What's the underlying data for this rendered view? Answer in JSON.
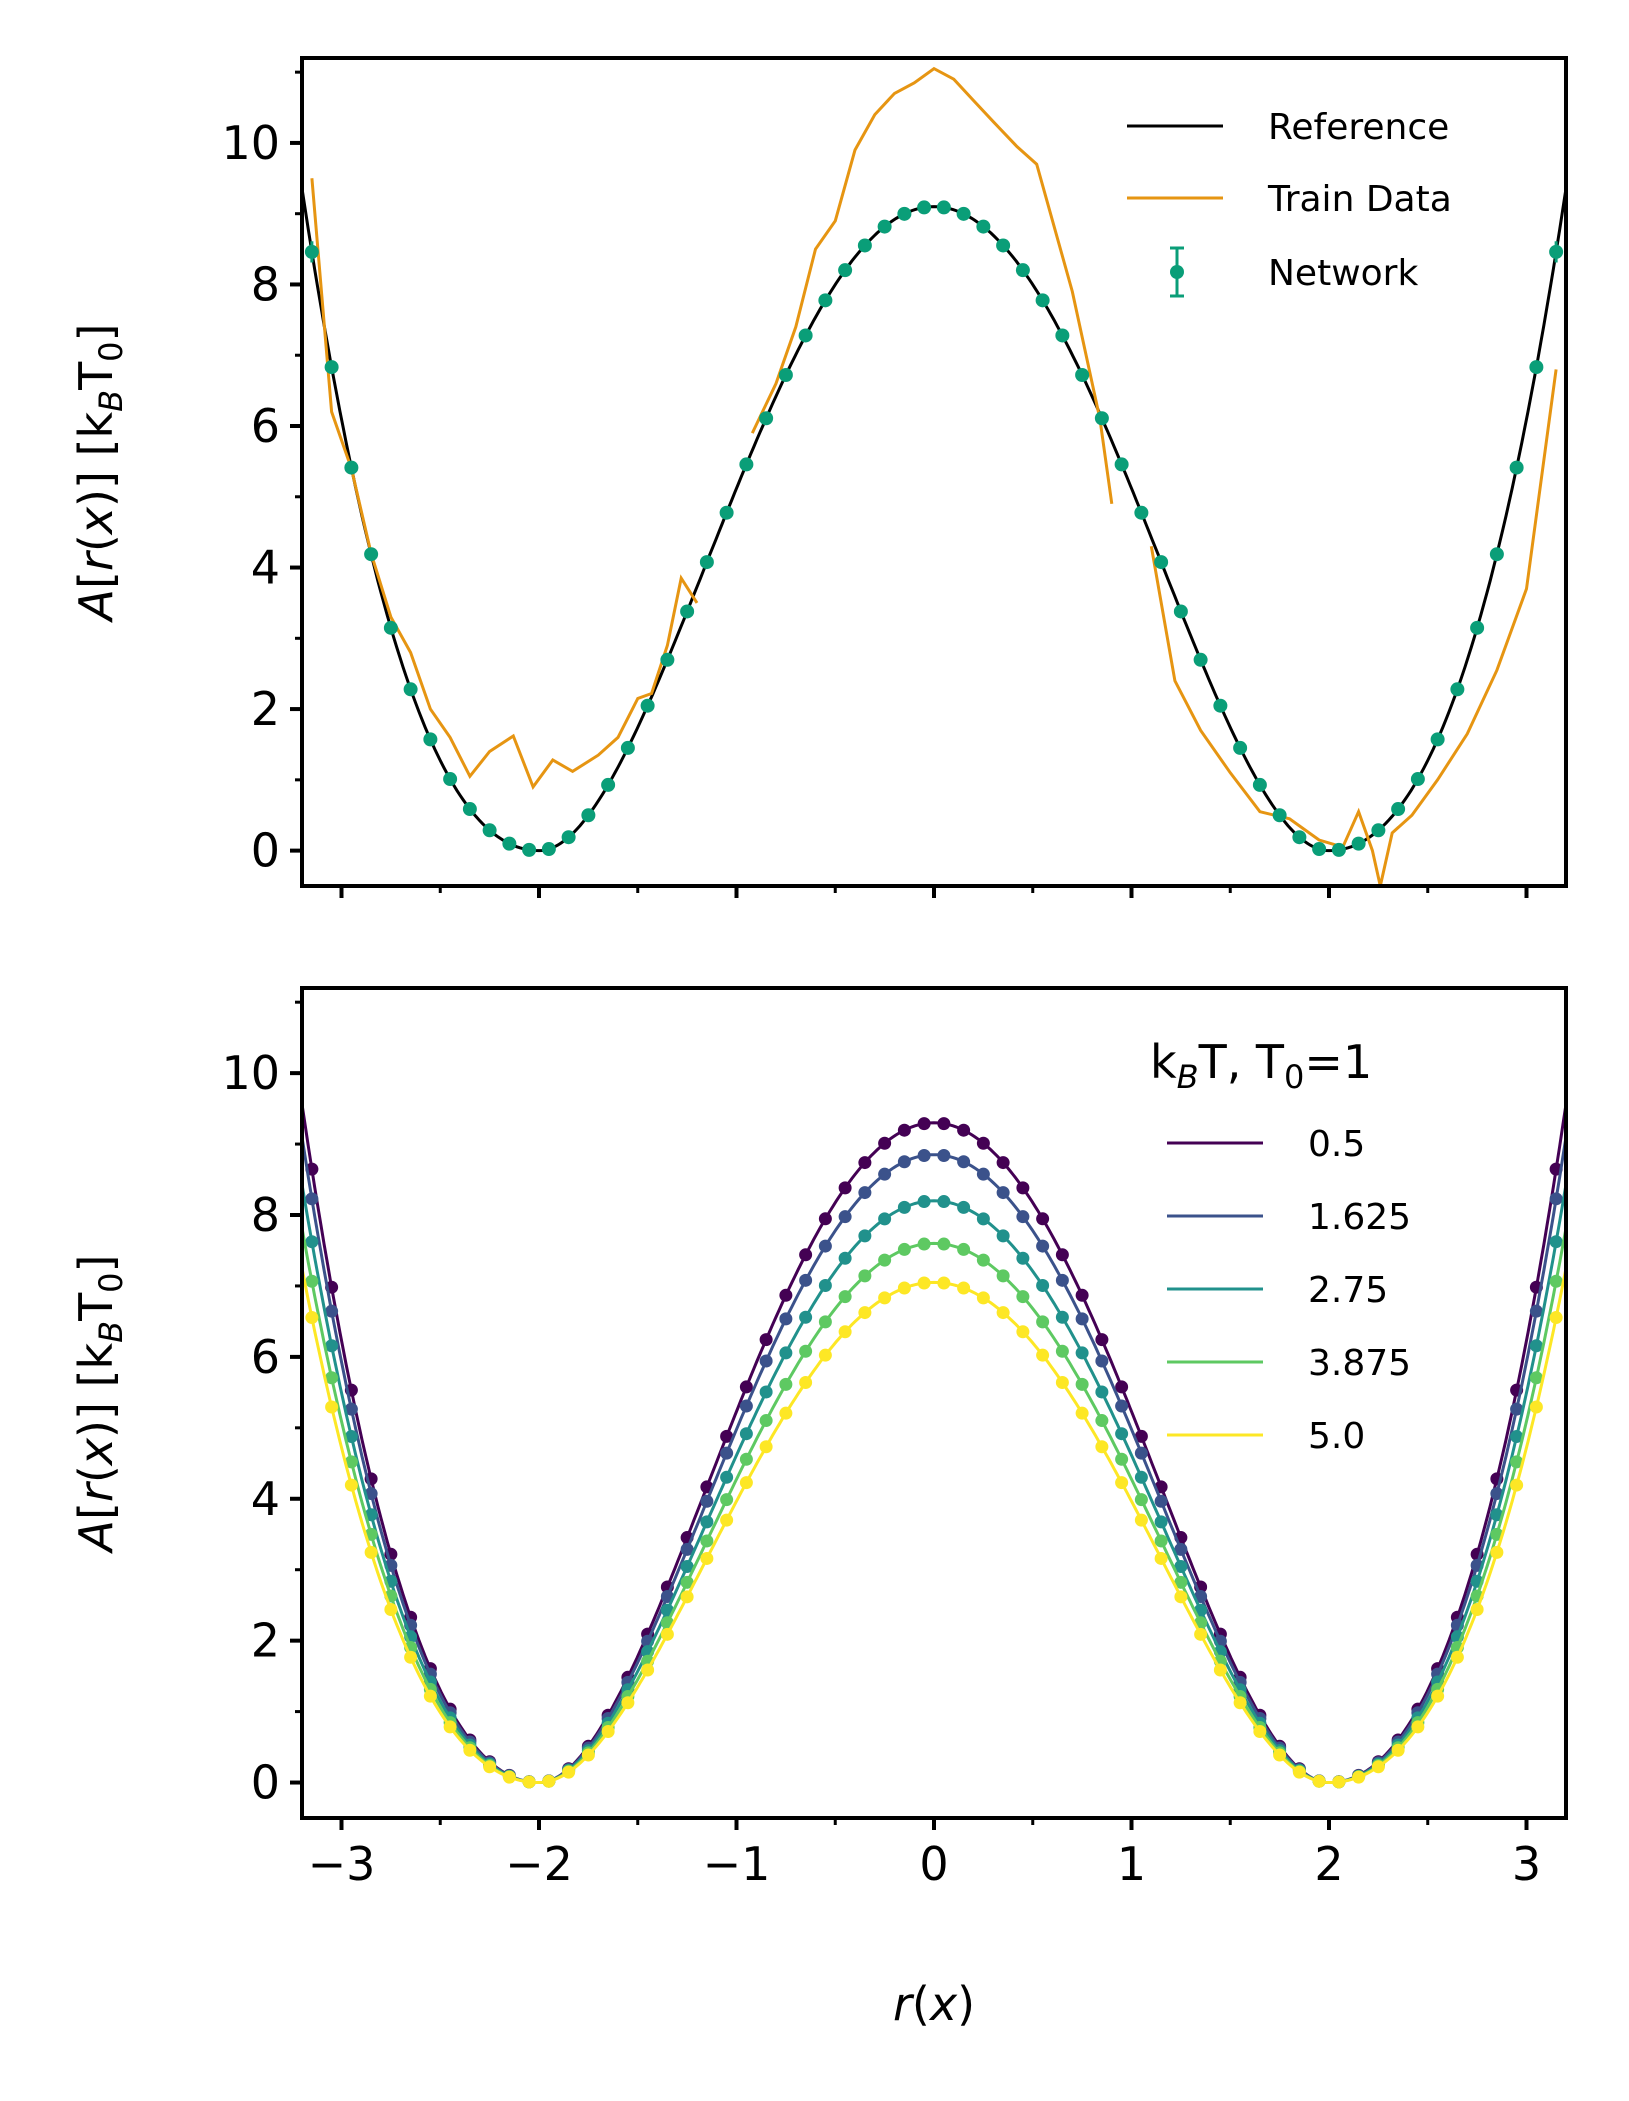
{
  "chart_data": [
    {
      "type": "line",
      "panel": "top",
      "ylabel": "A[r(x)] [k_B T_0]",
      "xlim": [
        -3.2,
        3.2
      ],
      "ylim": [
        -0.5,
        11.2
      ],
      "yticks": [
        0,
        2,
        4,
        6,
        8,
        10
      ],
      "ytick_labels": [
        "0",
        "2",
        "4",
        "6",
        "8",
        "10"
      ],
      "xticks": [
        -3,
        -2,
        -1,
        0,
        1,
        2,
        3
      ],
      "legend_position": "top-right",
      "colors": {
        "reference": "#000000",
        "train": "#e69512",
        "network": "#0a9e78"
      },
      "series": [
        {
          "name": "Reference",
          "kind": "function",
          "formula": "9.1*(1-(r/2)^2)^2 for |r|<=2; smooth rise outside"
        },
        {
          "name": "Train Data",
          "segments": [
            {
              "x": [
                -3.15,
                -3.05,
                -2.95,
                -2.85,
                -2.75,
                -2.65,
                -2.55,
                -2.45,
                -2.35,
                -2.25,
                -2.13,
                -2.03,
                -1.93,
                -1.83,
                -1.7,
                -1.6,
                -1.5,
                -1.43,
                -1.35,
                -1.28,
                -1.2
              ],
              "y": [
                9.5,
                6.2,
                5.4,
                4.2,
                3.3,
                2.8,
                2.0,
                1.6,
                1.05,
                1.4,
                1.62,
                0.9,
                1.28,
                1.12,
                1.35,
                1.6,
                2.15,
                2.22,
                2.9,
                3.85,
                3.5
              ]
            },
            {
              "x": [
                -0.92,
                -0.8,
                -0.7,
                -0.6,
                -0.5,
                -0.4,
                -0.3,
                -0.2,
                -0.1,
                0.0,
                0.1,
                0.2,
                0.3,
                0.42,
                0.52,
                0.7,
                0.84,
                0.9
              ],
              "y": [
                5.9,
                6.6,
                7.4,
                8.5,
                8.9,
                9.9,
                10.4,
                10.7,
                10.85,
                11.05,
                10.9,
                10.6,
                10.3,
                9.95,
                9.7,
                7.9,
                6.1,
                4.9
              ]
            },
            {
              "x": [
                1.1,
                1.22,
                1.35,
                1.5,
                1.65,
                1.8,
                1.95,
                2.07,
                2.15,
                2.22,
                2.26,
                2.32,
                2.42,
                2.55,
                2.7,
                2.85,
                3.0,
                3.15
              ],
              "y": [
                4.3,
                2.4,
                1.7,
                1.1,
                0.55,
                0.45,
                0.15,
                0.05,
                0.55,
                0.0,
                -0.5,
                0.25,
                0.5,
                1.0,
                1.65,
                2.55,
                3.7,
                6.8
              ]
            }
          ]
        },
        {
          "name": "Network",
          "kind": "points",
          "x_start": -3.15,
          "x_step": 0.1,
          "count": 64,
          "errorbars": true
        }
      ]
    },
    {
      "type": "line",
      "panel": "bottom",
      "xlabel": "r(x)",
      "ylabel": "A[r(x)] [k_B T_0]",
      "xlim": [
        -3.2,
        3.2
      ],
      "ylim": [
        -0.5,
        11.2
      ],
      "xticks": [
        -3,
        -2,
        -1,
        0,
        1,
        2,
        3
      ],
      "xtick_labels": [
        "−3",
        "−2",
        "−1",
        "0",
        "1",
        "2",
        "3"
      ],
      "yticks": [
        0,
        2,
        4,
        6,
        8,
        10
      ],
      "ytick_labels": [
        "0",
        "2",
        "4",
        "6",
        "8",
        "10"
      ],
      "legend_title": "k_B T, T_0=1",
      "legend_position": "top-right",
      "series": [
        {
          "name": "0.5",
          "color": "#440154",
          "peak": 9.3
        },
        {
          "name": "1.625",
          "color": "#3b528b",
          "peak": 8.85
        },
        {
          "name": "2.75",
          "color": "#21918c",
          "peak": 8.2
        },
        {
          "name": "3.875",
          "color": "#5ec962",
          "peak": 7.6
        },
        {
          "name": "5.0",
          "color": "#fde725",
          "peak": 7.05
        }
      ]
    }
  ]
}
